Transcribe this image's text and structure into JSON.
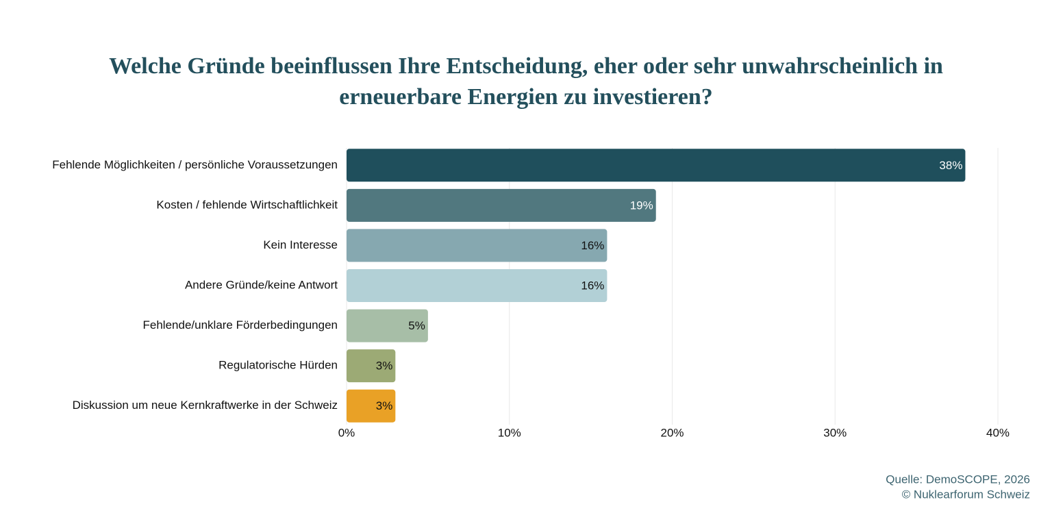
{
  "chart_data": {
    "type": "bar",
    "orientation": "horizontal",
    "title": "Welche Gründe beeinflussen Ihre Entscheidung, eher oder sehr unwahrscheinlich in erneuerbare Energien zu investieren?",
    "categories": [
      "Fehlende Möglichkeiten / persönliche Voraussetzungen",
      "Kosten / fehlende Wirtschaftlichkeit",
      "Kein Interesse",
      "Andere Gründe/keine Antwort",
      "Fehlende/unklare Förderbedingungen",
      "Regulatorische Hürden",
      "Diskussion um neue Kernkraftwerke in der Schweiz"
    ],
    "values": [
      38,
      19,
      16,
      16,
      5,
      3,
      3
    ],
    "value_labels": [
      "38%",
      "19%",
      "16%",
      "16%",
      "5%",
      "3%",
      "3%"
    ],
    "colors": [
      "#1f4f5c",
      "#51787f",
      "#86a8b0",
      "#b2d0d6",
      "#a7bea7",
      "#9caa75",
      "#e9a126"
    ],
    "value_label_colors": [
      "#ffffff",
      "#ffffff",
      "#111111",
      "#111111",
      "#111111",
      "#111111",
      "#111111"
    ],
    "xlim": [
      0,
      40
    ],
    "xticks": [
      {
        "value": 0,
        "label": "0%"
      },
      {
        "value": 10,
        "label": "10%"
      },
      {
        "value": 20,
        "label": "20%"
      },
      {
        "value": 30,
        "label": "30%"
      },
      {
        "value": 40,
        "label": "40%"
      }
    ],
    "grid": true,
    "source": [
      "Quelle: DemoSCOPE, 2026",
      "© Nuklearforum Schweiz"
    ]
  }
}
